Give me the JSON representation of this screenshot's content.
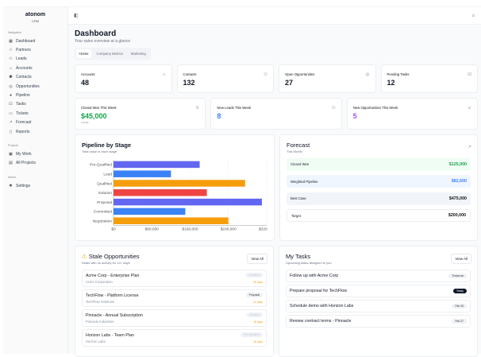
{
  "brand": {
    "name": "atonom",
    "sub": "CRM"
  },
  "sidebar": {
    "sections": [
      {
        "title": "Navigation",
        "items": [
          {
            "label": "Dashboard",
            "icon": "grid-icon"
          },
          {
            "label": "Partners",
            "icon": "handshake-icon"
          },
          {
            "label": "Leads",
            "icon": "user-plus-icon"
          },
          {
            "label": "Accounts",
            "icon": "building-icon"
          },
          {
            "label": "Contacts",
            "icon": "users-icon"
          },
          {
            "label": "Opportunities",
            "icon": "target-icon"
          },
          {
            "label": "Pipeline",
            "icon": "pipeline-icon"
          },
          {
            "label": "Tasks",
            "icon": "checklist-icon"
          },
          {
            "label": "Tickets",
            "icon": "ticket-icon"
          },
          {
            "label": "Forecast",
            "icon": "trend-icon"
          },
          {
            "label": "Reports",
            "icon": "file-icon"
          }
        ]
      },
      {
        "title": "Projects",
        "items": [
          {
            "label": "My Work",
            "icon": "briefcase-icon"
          },
          {
            "label": "All Projects",
            "icon": "folder-icon"
          }
        ]
      },
      {
        "title": "Admin",
        "items": [
          {
            "label": "Settings",
            "icon": "gear-icon"
          }
        ]
      }
    ]
  },
  "header": {
    "title": "Dashboard",
    "subtitle": "Your sales overview at a glance"
  },
  "tabs": [
    "Home",
    "Company Metrics",
    "Marketing"
  ],
  "stats": [
    {
      "label": "Accounts",
      "value": "48"
    },
    {
      "label": "Contacts",
      "value": "132"
    },
    {
      "label": "Open Opportunities",
      "value": "27"
    },
    {
      "label": "Pending Tasks",
      "value": "12"
    }
  ],
  "weekly": [
    {
      "label": "Closed Won This Week",
      "value": "$45,000",
      "note": "3 deals",
      "color": "#16a34a"
    },
    {
      "label": "New Leads This Week",
      "value": "8",
      "color": "#3b82f6"
    },
    {
      "label": "New Opportunities This Week",
      "value": "5",
      "color": "#a855f7"
    }
  ],
  "pipeline": {
    "title": "Pipeline by Stage",
    "subtitle": "Total value in each stage"
  },
  "chart_data": {
    "type": "bar",
    "orientation": "horizontal",
    "categories": [
      "Pre-Qualified",
      "Lead",
      "Qualified",
      "Solution",
      "Proposal",
      "Committed",
      "Negotiation"
    ],
    "values": [
      180000,
      120000,
      275000,
      195000,
      310000,
      150000,
      240000
    ],
    "colors": [
      "#6366f1",
      "#3b82f6",
      "#f59e0b",
      "#ef4444",
      "#6366f1",
      "#3b82f6",
      "#f59e0b"
    ],
    "xlim": [
      0,
      320000
    ],
    "xticks": [
      "$0",
      "$80,000",
      "$160,000",
      "$240,000",
      "$320,000"
    ],
    "grid": true
  },
  "forecast": {
    "title": "Forecast",
    "subtitle": "This Month",
    "rows": [
      {
        "label": "Closed Won",
        "value": "$125,000"
      },
      {
        "label": "Weighted Pipeline",
        "value": "$82,500"
      },
      {
        "label": "Best Case",
        "value": "$475,000"
      },
      {
        "label": "Target",
        "value": "$200,000"
      }
    ]
  },
  "stale": {
    "title": "Stale Opportunities",
    "subtitle": "Deals with no activity for 14+ days",
    "view_all": "View All",
    "items": [
      {
        "name": "Acme Corp - Enterprise Plan",
        "company": "Acme Corporation",
        "stage": "Qualified",
        "days": "28 days"
      },
      {
        "name": "TechFlow - Platform License",
        "company": "TechFlow Solutions",
        "stage": "Proposal",
        "days": "21 days"
      },
      {
        "name": "Pinnacle - Annual Subscription",
        "company": "Pinnacle Industries",
        "stage": "Solution",
        "days": "18 days"
      },
      {
        "name": "Horizon Labs - Team Plan",
        "company": "Horizon Labs",
        "stage": "Pre-Qualified",
        "days": "16 days"
      }
    ]
  },
  "tasks": {
    "title": "My Tasks",
    "subtitle": "Upcoming tasks assigned to you",
    "view_all": "View All",
    "items": [
      {
        "title": "Follow up with Acme Corp",
        "due": "Tomorrow"
      },
      {
        "title": "Prepare proposal for TechFlow",
        "due": "Today"
      },
      {
        "title": "Schedule demo with Horizon Labs",
        "due": "Feb 25"
      },
      {
        "title": "Review contract terms - Pinnacle",
        "due": "Feb 27"
      }
    ]
  }
}
